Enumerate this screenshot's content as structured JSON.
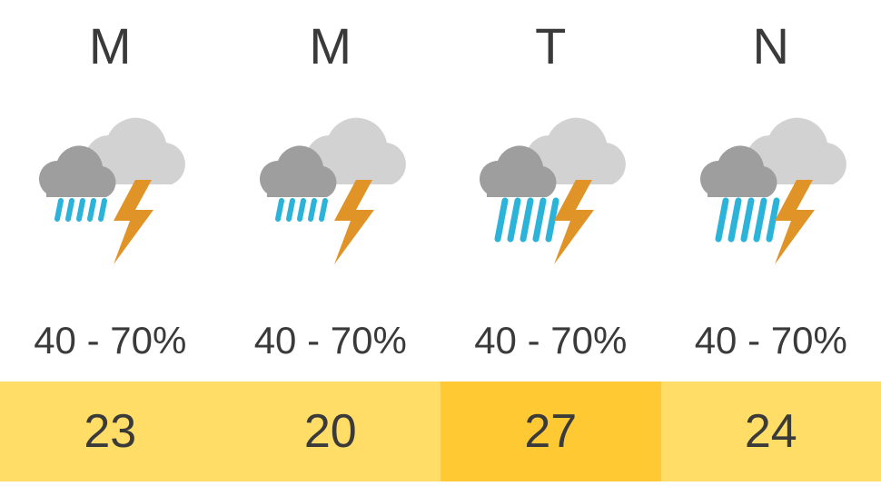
{
  "forecast": {
    "days": [
      {
        "label": "M",
        "precip": "40 - 70%",
        "temp": "23",
        "rain_type": "short",
        "temp_bg": "#ffdd66"
      },
      {
        "label": "M",
        "precip": "40 - 70%",
        "temp": "20",
        "rain_type": "short",
        "temp_bg": "#ffdd66"
      },
      {
        "label": "T",
        "precip": "40 - 70%",
        "temp": "27",
        "rain_type": "long",
        "temp_bg": "#ffc933"
      },
      {
        "label": "N",
        "precip": "40 - 70%",
        "temp": "24",
        "rain_type": "long",
        "temp_bg": "#ffdd66"
      }
    ],
    "colors": {
      "cloud_light": "#d2d2d2",
      "cloud_dark": "#9e9e9e",
      "rain": "#2bb3d9",
      "lightning": "#e09428",
      "text": "#3a3a3a",
      "bg": "#ffffff"
    },
    "typography": {
      "day_fontsize": 56,
      "precip_fontsize": 42,
      "temp_fontsize": 52
    }
  }
}
